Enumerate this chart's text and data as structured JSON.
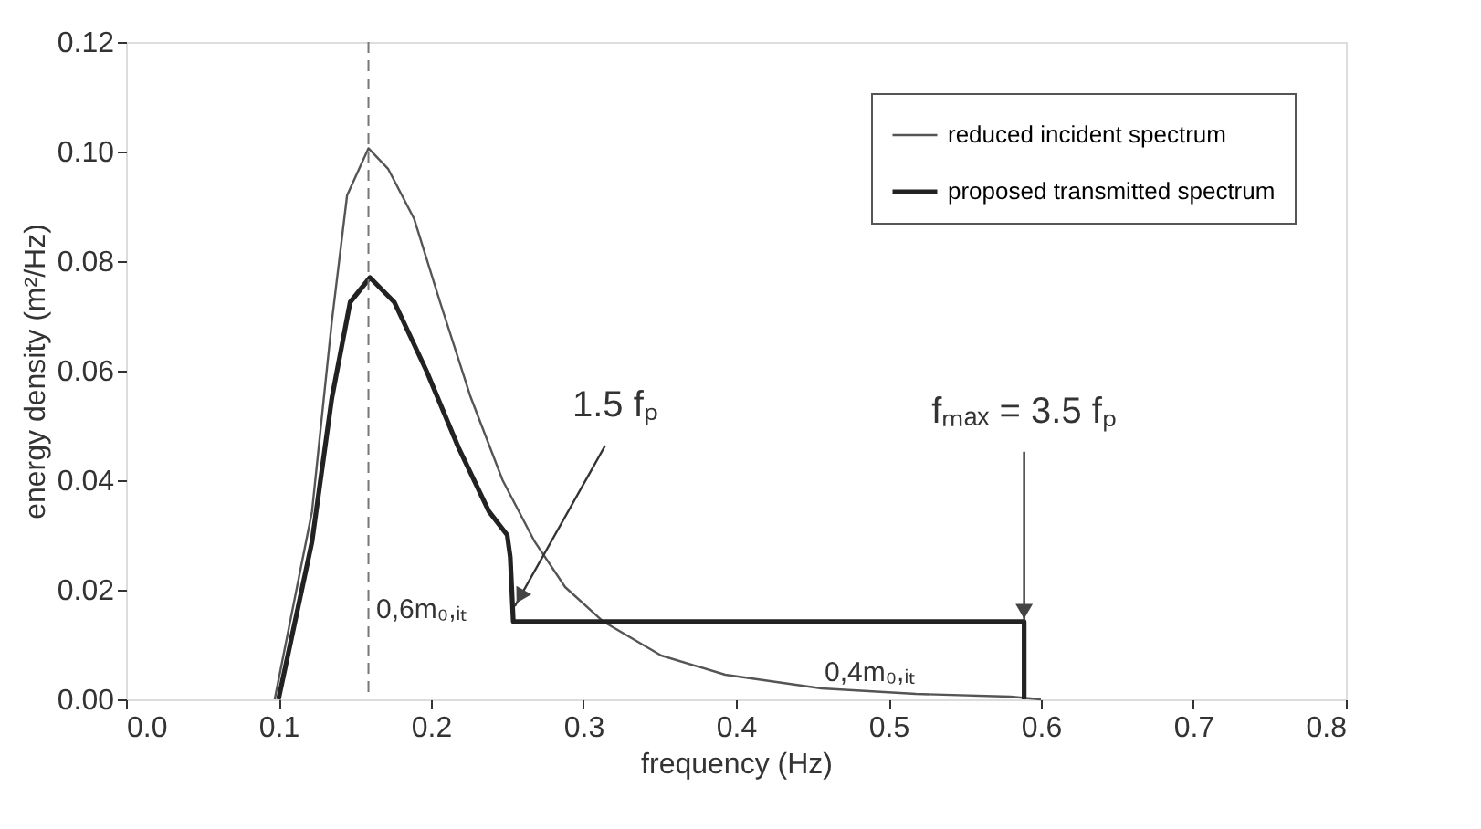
{
  "chart_data": {
    "type": "line",
    "xlabel": "frequency (Hz)",
    "ylabel": "energy density (m²/Hz)",
    "xlim": [
      0.0,
      0.8
    ],
    "xticks": [
      {
        "value": 0,
        "label": "0.0"
      },
      0.1,
      0.2,
      0.3,
      0.4,
      0.5,
      0.6,
      0.7,
      0.8
    ],
    "ylim": [
      0.0,
      0.12
    ],
    "yticks": [
      {
        "value": 0,
        "label": "0.00"
      },
      0.02,
      0.04,
      0.06,
      0.08,
      {
        "value": 0.1,
        "label": "0.10"
      },
      0.12
    ],
    "grid": false,
    "legend": "top right",
    "line_style": "solid",
    "marker": "none",
    "series": [
      {
        "name": "reduced incident spectrum",
        "color": "#555555",
        "x": [
          0.0975,
          0.122,
          0.135,
          0.145,
          0.159,
          0.172,
          0.189,
          0.206,
          0.226,
          0.247,
          0.268,
          0.288,
          0.313,
          0.351,
          0.393,
          0.456,
          0.518,
          0.58,
          0.6
        ],
        "values": [
          0.0,
          0.0343,
          0.069,
          0.092,
          0.1006,
          0.0968,
          0.0877,
          0.0725,
          0.0552,
          0.04,
          0.0288,
          0.0205,
          0.0142,
          0.008,
          0.0045,
          0.002,
          0.001,
          0.0005,
          0.0
        ]
      },
      {
        "name": "proposed transmitted spectrum",
        "color": "#222222",
        "x": [
          0.1,
          0.122,
          0.135,
          0.147,
          0.16,
          0.176,
          0.197,
          0.218,
          0.238,
          0.25,
          0.252,
          0.254,
          0.589,
          0.589
        ],
        "values": [
          0.0,
          0.0288,
          0.055,
          0.0725,
          0.077,
          0.0725,
          0.06,
          0.046,
          0.0343,
          0.03,
          0.026,
          0.0142,
          0.0142,
          0.0
        ]
      }
    ],
    "ref_lines": [
      {
        "axis": "x",
        "value": 0.159,
        "line_style": "dashed",
        "color": "#777777"
      }
    ],
    "annotations": [
      {
        "text": "1.5 fₚ",
        "x": 0.255,
        "y": 0.017
      },
      {
        "text": "fₘₐₓ = 3.5 fₚ",
        "x": 0.589,
        "y": 0.0142
      },
      {
        "text": "0,6m₀,ᵢₜ",
        "x": 0.254,
        "y": 0.0142
      },
      {
        "text": "0,4m₀,ᵢₜ",
        "x": 0.518,
        "y": 0.001
      }
    ]
  }
}
